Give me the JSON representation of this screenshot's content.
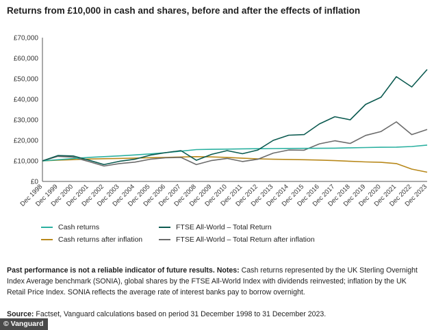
{
  "title": "Returns from £10,000 in cash and shares, before and after the effects of inflation",
  "chart_data": {
    "type": "line",
    "title": "Returns from £10,000 in cash and shares, before and after the effects of inflation",
    "x": [
      "Dec 1998",
      "Dec 1999",
      "Dec 2000",
      "Dec 2001",
      "Dec 2002",
      "Dec 2003",
      "Dec 2004",
      "Dec 2005",
      "Dec 2006",
      "Dec 2007",
      "Dec 2008",
      "Dec 2009",
      "Dec 2010",
      "Dec 2011",
      "Dec 2012",
      "Dec 2013",
      "Dec 2014",
      "Dec 2015",
      "Dec 2016",
      "Dec 2017",
      "Dec 2018",
      "Dec 2019",
      "Dec 2020",
      "Dec 2021",
      "Dec 2022",
      "Dec 2023"
    ],
    "x_tick_labels": [
      "Dec 1998",
      "Dec 1999",
      "Dec 2000",
      "Dec 2001",
      "Dec 2002",
      "Dec 2003",
      "Dec 2004",
      "Dec 2005",
      "Dec 2006",
      "Dec 2007",
      "Dec 2008",
      "Dec 2009",
      "Dec 2010",
      "Dec 2011",
      "Dec 2012",
      "Dec 2013",
      "Dec 2014",
      "Dec 2015",
      "Dec 2016",
      "Dec 2017",
      "Dec 2018",
      "Dec 2019",
      "Dec 2020",
      "Dec 2021",
      "Dec 2022",
      "Dec 2023"
    ],
    "y_tick_labels": [
      "£0",
      "£10,000",
      "£20,000",
      "£30,000",
      "£40,000",
      "£50,000",
      "£60,000",
      "£70,000"
    ],
    "ylim": [
      0,
      70000
    ],
    "grid": false,
    "legend_position": "bottom",
    "series": [
      {
        "name": "Cash returns",
        "color": "#2ab0a0",
        "values": [
          10000,
          10550,
          11150,
          11700,
          12050,
          12450,
          12900,
          13400,
          14000,
          14750,
          15500,
          15650,
          15750,
          15850,
          15950,
          16000,
          16050,
          16100,
          16150,
          16200,
          16350,
          16500,
          16650,
          16700,
          17000,
          17700
        ]
      },
      {
        "name": "FTSE All-World – Total Return",
        "color": "#0b5a50",
        "values": [
          10000,
          12600,
          12400,
          10400,
          8200,
          9800,
          10800,
          12800,
          14000,
          15000,
          10300,
          13200,
          15000,
          13500,
          15300,
          20000,
          22500,
          22800,
          28000,
          31500,
          30000,
          37500,
          41000,
          51000,
          46000,
          54500
        ]
      },
      {
        "name": "Cash returns after inflation",
        "color": "#b8881a",
        "values": [
          10000,
          10350,
          10600,
          10900,
          11050,
          11200,
          11350,
          11550,
          11700,
          11900,
          12050,
          11950,
          11700,
          11300,
          11000,
          10800,
          10700,
          10550,
          10400,
          10150,
          9800,
          9500,
          9300,
          8700,
          6000,
          4500
        ]
      },
      {
        "name": "FTSE All-World – Total Return after inflation",
        "color": "#6b6b6b",
        "values": [
          10000,
          12200,
          11800,
          9700,
          7500,
          8700,
          9400,
          10800,
          11500,
          11700,
          8200,
          10200,
          11200,
          9700,
          10800,
          13800,
          15300,
          15200,
          18300,
          19800,
          18500,
          22400,
          24300,
          29000,
          22800,
          25300
        ]
      }
    ]
  },
  "notes": {
    "bold": "Past performance is not a reliable indicator of future results. Notes:",
    "text": " Cash returns represented by the UK Sterling Overnight Index Average benchmark (SONIA), global shares by the FTSE All-World Index with dividends reinvested; inflation by the UK Retail Price Index. SONIA reflects the average rate of interest banks pay to borrow overnight."
  },
  "source": {
    "bold": "Source:",
    "text": " Factset, Vanguard calculations based on period 31 December 1998 to 31 December 2023."
  },
  "credit": "© Vanguard",
  "colors": {
    "cash": "#2ab0a0",
    "ftse": "#0b5a50",
    "cash_infl": "#b8881a",
    "ftse_infl": "#6b6b6b"
  }
}
